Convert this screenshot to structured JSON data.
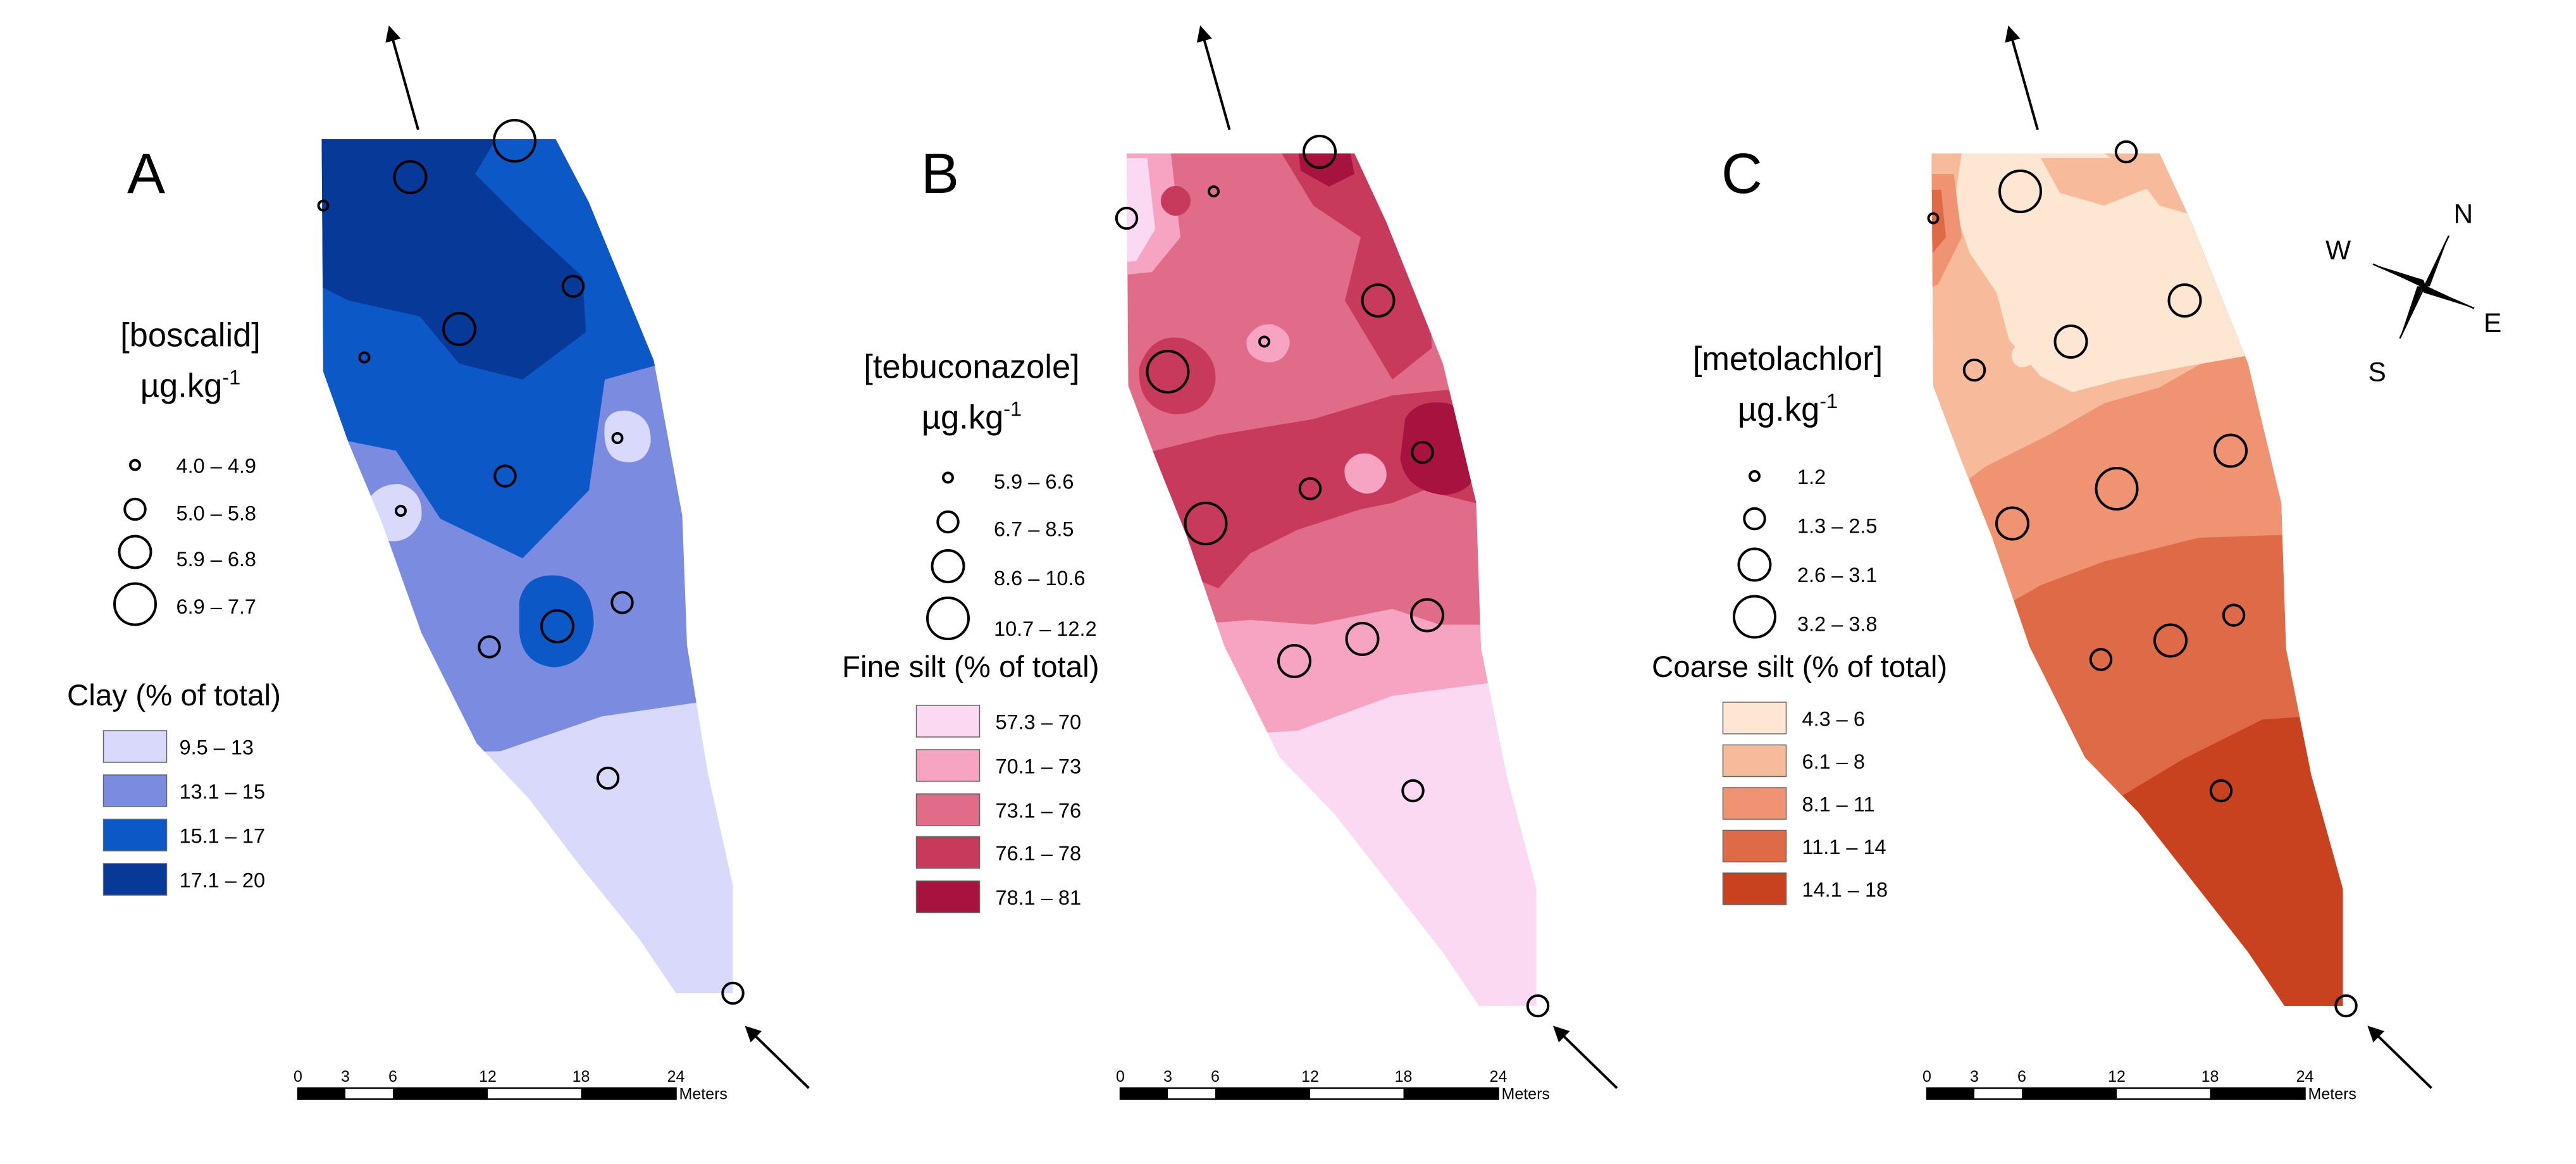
{
  "palettes": {
    "A": [
      "#d9d9fb",
      "#7b8be0",
      "#0b58c6",
      "#073a98"
    ],
    "B": [
      "#fcd9f2",
      "#f6a4c2",
      "#e06c8a",
      "#c73a5c",
      "#a8123e"
    ],
    "C": [
      "#fde6d2",
      "#f7bb9c",
      "#ef9373",
      "#de6a47",
      "#c8421f"
    ]
  },
  "compass": {
    "n": "N",
    "e": "E",
    "s": "S",
    "w": "W"
  },
  "panels": [
    {
      "letter": "A",
      "analyte": "[boscalid]",
      "unit_main": "µg.kg",
      "unit_exp": "-1",
      "circle_classes": [
        "4.0 – 4.9",
        "5.0 – 5.8",
        "5.9 – 6.8",
        "6.9 – 7.7"
      ],
      "zone_title": "Clay (% of total)",
      "zone_classes": [
        "9.5 – 13",
        "13.1 – 15",
        "15.1 – 17",
        "17.1 – 20"
      ],
      "scale_ticks": [
        "0",
        "3",
        "6",
        "12",
        "18",
        "24"
      ],
      "scale_unit": "Meters"
    },
    {
      "letter": "B",
      "analyte": "[tebuconazole]",
      "unit_main": "µg.kg",
      "unit_exp": "-1",
      "circle_classes": [
        "5.9 – 6.6",
        "6.7 – 8.5",
        "8.6 – 10.6",
        "10.7 – 12.2"
      ],
      "zone_title": "Fine silt (% of total)",
      "zone_classes": [
        "57.3 – 70",
        "70.1 – 73",
        "73.1 – 76",
        "76.1 – 78",
        "78.1 – 81"
      ],
      "scale_ticks": [
        "0",
        "3",
        "6",
        "12",
        "18",
        "24"
      ],
      "scale_unit": "Meters"
    },
    {
      "letter": "C",
      "analyte": "[metolachlor]",
      "unit_main": "µg.kg",
      "unit_exp": "-1",
      "circle_classes": [
        "1.2",
        "1.3 – 2.5",
        "2.6 – 3.1",
        "3.2 – 3.8"
      ],
      "zone_title": "Coarse silt (% of total)",
      "zone_classes": [
        "4.3 – 6",
        "6.1 – 8",
        "8.1 – 11",
        "11.1 – 14",
        "14.1 – 18"
      ],
      "scale_ticks": [
        "0",
        "3",
        "6",
        "12",
        "18",
        "24"
      ],
      "scale_unit": "Meters"
    }
  ]
}
